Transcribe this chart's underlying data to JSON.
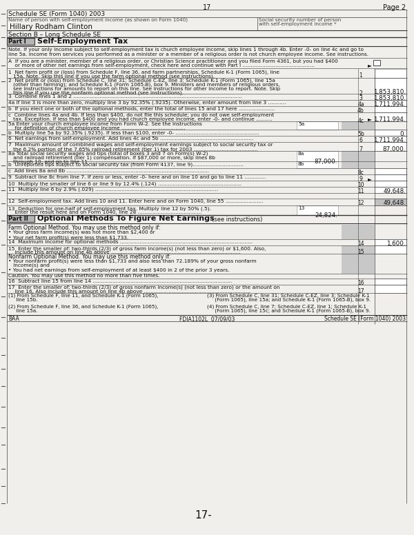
{
  "title": "Schedule SE (Form 1040) 2003",
  "page": "17",
  "page2": "Page 2",
  "name": "Hillary Rodham Clinton",
  "ssn_label": "Social security number of person\nwith self-employment income *",
  "section_b": "Section B – Long Schedule SE",
  "part1_label": "Part I",
  "part1_title": "Self-Employment Tax",
  "part2_label": "Part II",
  "part2_title": "Optional Methods To Figure Net Earnings",
  "part2_subtitle": "(see instructions)",
  "form_bg": "#f0efeb",
  "note_text_line1": "Note. If your only income subject to self-employment tax is church employee income, skip lines 1 through 4b. Enter -0- on line 4c and go to",
  "note_text_line2": "line 5a. Income from services you performed as a minister or a member of a religious order is not church employee income. See instructions.",
  "footer_left": "BAA",
  "footer_center": "FDIA1102L  07/09/03",
  "footer_right": "Schedule SE (Form 1040) 2003",
  "page_number_bottom": "17-",
  "values": {
    "line2": "1,853,810.",
    "line3": "1,853,810.",
    "line4a": "1,711,994.",
    "line4b": "",
    "line4c": "1,711,994.",
    "line5a": "",
    "line5b": "0.",
    "line6": "1,711,994.",
    "line7": "87,000.",
    "line8a": "87,000.",
    "line8b": "",
    "line8c": "",
    "line9": "",
    "line10": "",
    "line11": "49,648.",
    "line12": "49,648.",
    "line13": "24,824.",
    "line14": "1,600.",
    "line15": "",
    "line16": "",
    "line17": ""
  }
}
